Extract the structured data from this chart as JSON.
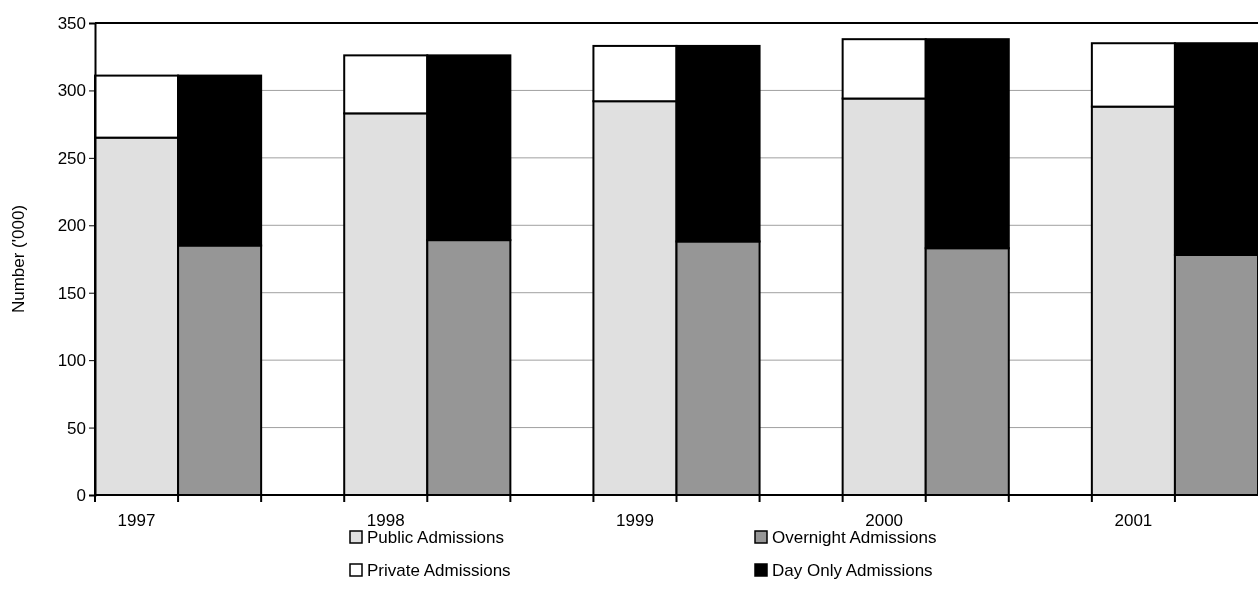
{
  "chart_data": {
    "type": "bar",
    "stacked": true,
    "ylabel": "Number ('000)",
    "categories": [
      "1997",
      null,
      null,
      "1998",
      null,
      null,
      "1999",
      null,
      null,
      "2000",
      null,
      null,
      "2001",
      null
    ],
    "series": [
      {
        "name": "Public Admissions",
        "color": "#e0e0e0",
        "values": [
          265,
          null,
          null,
          283,
          null,
          null,
          292,
          null,
          null,
          294,
          null,
          null,
          288,
          null
        ]
      },
      {
        "name": "Private Admissions",
        "color": "#ffffff",
        "values": [
          46,
          null,
          null,
          43,
          null,
          null,
          41,
          null,
          null,
          44,
          null,
          null,
          47,
          null
        ]
      },
      {
        "name": "Overnight Admissions",
        "color": "#969696",
        "values": [
          null,
          185,
          null,
          null,
          189,
          null,
          null,
          188,
          null,
          null,
          183,
          null,
          null,
          178
        ]
      },
      {
        "name": "Day Only Admissions",
        "color": "#000000",
        "values": [
          null,
          126,
          null,
          null,
          137,
          null,
          null,
          145,
          null,
          null,
          155,
          null,
          null,
          157
        ]
      }
    ],
    "ylim": [
      0,
      350
    ],
    "yticks": [
      0,
      50,
      100,
      150,
      200,
      250,
      300,
      350
    ],
    "grid": "y",
    "legend": "bottom"
  }
}
